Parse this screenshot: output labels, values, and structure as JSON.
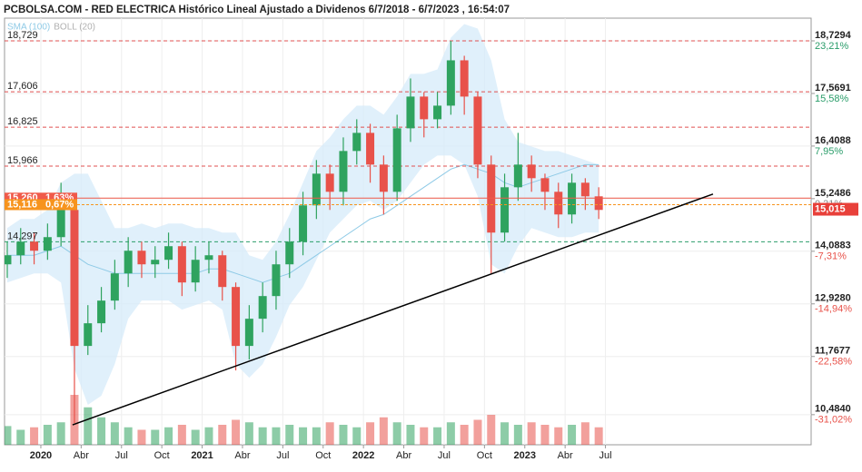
{
  "chart_data": {
    "type": "candlestick",
    "title": "PCBOLSA.COM - RED ELECTRICA Histórico Lineal Ajustado a Dividenos 6/7/2018 - 6/7/2023 , 16:54:07",
    "legend": [
      {
        "name": "SMA (100)",
        "color": "#8ecae6"
      },
      {
        "name": "BOLL (20)",
        "color": "#b0b0b0"
      }
    ],
    "x": [
      -2.5,
      -1.5,
      -0.5,
      0.5,
      1.5,
      2.5,
      3.5,
      4.5,
      5.5,
      6.5,
      7.5,
      8.5,
      9.5,
      10.5,
      11.5,
      12.5,
      13.5,
      14.5,
      15.5,
      16.5,
      17.5,
      18.5,
      19.5,
      20.5,
      21.5,
      22.5,
      23.5,
      24.5,
      25.5,
      26.5,
      27.5,
      28.5,
      29.5,
      30.5,
      31.5,
      32.5,
      33.5,
      34.5,
      35.5,
      36.5,
      37.5,
      38.5,
      39.5,
      40.5,
      41.5
    ],
    "open": [
      13.8,
      14.0,
      14.3,
      14.1,
      14.4,
      15.0,
      12.0,
      12.5,
      13.0,
      13.6,
      14.1,
      13.8,
      13.9,
      14.2,
      13.4,
      13.9,
      14.0,
      13.3,
      12.0,
      12.6,
      13.1,
      13.8,
      14.3,
      15.1,
      15.8,
      15.4,
      16.3,
      16.7,
      16.0,
      15.4,
      16.8,
      17.5,
      17.0,
      17.3,
      18.3,
      17.5,
      16.0,
      14.5,
      15.5,
      16.0,
      15.7,
      15.4,
      14.9,
      15.6,
      15.3
    ],
    "high": [
      14.3,
      14.6,
      14.5,
      14.7,
      15.6,
      15.1,
      12.9,
      13.3,
      13.9,
      14.4,
      14.3,
      14.2,
      14.5,
      14.3,
      14.2,
      14.3,
      14.1,
      13.4,
      12.9,
      13.4,
      14.1,
      14.6,
      15.4,
      16.1,
      16.0,
      16.6,
      17.0,
      16.9,
      16.2,
      17.1,
      17.9,
      17.6,
      17.6,
      18.73,
      18.4,
      17.6,
      16.2,
      15.8,
      16.7,
      16.2,
      15.8,
      15.6,
      15.8,
      15.7,
      15.5
    ],
    "low": [
      13.5,
      13.8,
      13.8,
      13.9,
      14.2,
      10.3,
      11.8,
      12.3,
      12.8,
      13.3,
      13.5,
      13.5,
      13.7,
      13.1,
      13.2,
      13.6,
      13.0,
      11.46,
      11.7,
      12.3,
      12.8,
      13.5,
      14.0,
      14.8,
      15.0,
      15.1,
      16.0,
      15.6,
      14.9,
      15.2,
      16.5,
      16.6,
      16.8,
      17.1,
      17.1,
      15.7,
      13.6,
      14.3,
      15.2,
      15.4,
      15.0,
      14.6,
      14.7,
      15.0,
      14.8
    ],
    "close": [
      14.0,
      14.3,
      14.1,
      14.4,
      15.0,
      12.0,
      12.5,
      13.0,
      13.6,
      14.1,
      13.8,
      13.9,
      14.2,
      13.4,
      13.9,
      14.0,
      13.3,
      12.0,
      12.6,
      13.1,
      13.8,
      14.3,
      15.1,
      15.8,
      15.4,
      16.3,
      16.7,
      16.0,
      15.4,
      16.8,
      17.5,
      17.0,
      17.3,
      18.3,
      17.5,
      16.0,
      14.5,
      15.5,
      16.0,
      15.7,
      15.4,
      14.9,
      15.6,
      15.3,
      15.0
    ],
    "volume": [
      15,
      12,
      14,
      16,
      18,
      40,
      30,
      22,
      18,
      14,
      12,
      12,
      14,
      16,
      12,
      14,
      16,
      20,
      18,
      14,
      14,
      16,
      14,
      14,
      18,
      16,
      14,
      18,
      22,
      18,
      16,
      14,
      14,
      18,
      16,
      20,
      24,
      18,
      16,
      18,
      16,
      14,
      16,
      18,
      14
    ],
    "boll_upper": [
      14.6,
      14.8,
      14.8,
      15.0,
      15.6,
      15.8,
      15.8,
      15.2,
      14.6,
      14.6,
      14.7,
      14.6,
      14.7,
      14.7,
      14.6,
      14.6,
      14.5,
      14.5,
      14.0,
      13.9,
      14.3,
      14.9,
      15.6,
      16.3,
      16.6,
      17.0,
      17.3,
      17.3,
      17.1,
      17.5,
      18.0,
      18.0,
      18.1,
      18.8,
      19.1,
      19.0,
      18.3,
      17.0,
      16.5,
      16.4,
      16.3,
      16.3,
      16.2,
      16.1,
      16.0
    ],
    "boll_lower": [
      13.4,
      13.5,
      13.6,
      13.6,
      13.4,
      11.5,
      10.7,
      10.9,
      11.6,
      12.6,
      13.0,
      13.0,
      13.0,
      12.8,
      12.9,
      13.0,
      12.8,
      11.6,
      11.3,
      11.6,
      12.2,
      12.9,
      13.3,
      13.9,
      14.5,
      14.8,
      15.1,
      15.2,
      15.0,
      15.2,
      15.6,
      16.0,
      16.2,
      16.2,
      16.0,
      15.3,
      13.8,
      13.6,
      14.2,
      14.6,
      14.5,
      14.4,
      14.4,
      14.5,
      14.5
    ],
    "sma": [
      14.0,
      14.0,
      14.0,
      14.1,
      14.2,
      14.0,
      13.8,
      13.7,
      13.6,
      13.6,
      13.6,
      13.6,
      13.6,
      13.6,
      13.6,
      13.7,
      13.7,
      13.6,
      13.5,
      13.4,
      13.5,
      13.6,
      13.8,
      14.0,
      14.2,
      14.4,
      14.6,
      14.8,
      14.9,
      15.1,
      15.3,
      15.5,
      15.7,
      15.9,
      16.0,
      15.9,
      15.8,
      15.6,
      15.5,
      15.6,
      15.7,
      15.8,
      15.9,
      16.0,
      16.0
    ],
    "up_color": "#2fa35f",
    "down_color": "#e8524a",
    "xlim": [
      -2.7,
      57.3
    ],
    "xticks": [
      {
        "value": 0,
        "label": "2020"
      },
      {
        "value": 3,
        "label": "Abr"
      },
      {
        "value": 6,
        "label": "Jul"
      },
      {
        "value": 9,
        "label": "Oct"
      },
      {
        "value": 12,
        "label": "2021"
      },
      {
        "value": 15,
        "label": "Abr"
      },
      {
        "value": 18,
        "label": "Jul"
      },
      {
        "value": 21,
        "label": "Oct"
      },
      {
        "value": 24,
        "label": "2022"
      },
      {
        "value": 27,
        "label": "Abr"
      },
      {
        "value": 30,
        "label": "Jul"
      },
      {
        "value": 33,
        "label": "Oct"
      },
      {
        "value": 36,
        "label": "2023"
      },
      {
        "value": 39,
        "label": "Abr"
      },
      {
        "value": 42,
        "label": "Jul"
      }
    ],
    "ylim": [
      9.82,
      19.23
    ],
    "yticks": [
      {
        "value": 18.7294,
        "label": "18,7294"
      },
      {
        "value": 17.5691,
        "label": "17,5691"
      },
      {
        "value": 16.4088,
        "label": "16,4088"
      },
      {
        "value": 15.2486,
        "label": "15,2486"
      },
      {
        "value": 14.0883,
        "label": "14,0883"
      },
      {
        "value": 12.928,
        "label": "12,9280"
      },
      {
        "value": 11.7677,
        "label": "11,7677"
      },
      {
        "value": 10.484,
        "label": "10,4840"
      }
    ],
    "ytick_pct": [
      "23,21%",
      "15,58%",
      "7,95%",
      "0,31%",
      "-7,31%",
      "-14,94%",
      "-22,58%",
      "-31,02%"
    ],
    "ytick_pct_colors": [
      "#2a9d6a",
      "#2a9d6a",
      "#2a9d6a",
      "#888888",
      "#e8524a",
      "#e8524a",
      "#e8524a",
      "#e8524a"
    ],
    "levels": [
      {
        "value": 18.729,
        "label": "18,729",
        "color": "#e05050"
      },
      {
        "value": 17.606,
        "label": "17,606",
        "color": "#e05050"
      },
      {
        "value": 16.825,
        "label": "16,825",
        "color": "#e05050"
      },
      {
        "value": 15.966,
        "label": "15,966",
        "color": "#e05050"
      },
      {
        "value": 14.297,
        "label": "14,297",
        "color": "#2a9d6a"
      }
    ],
    "price_lines": [
      {
        "value": 15.26,
        "label": "15,260",
        "pct": "1,63%",
        "color": "#f05a4a"
      },
      {
        "value": 15.116,
        "label": "15,116",
        "pct": "0,67%",
        "color": "#f7941d"
      }
    ],
    "last_price": {
      "value": 15.015,
      "label": "15,015",
      "color": "#e8403a"
    },
    "trendline": {
      "x": [
        2.36,
        50.0
      ],
      "y": [
        10.26,
        15.35
      ]
    },
    "grid": true
  }
}
